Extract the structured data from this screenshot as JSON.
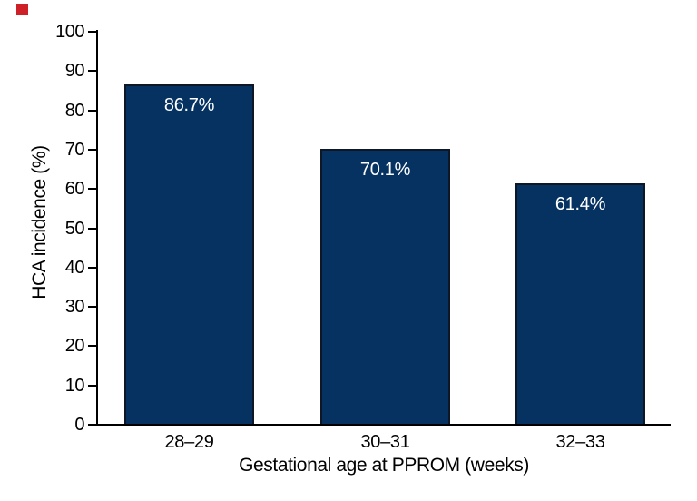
{
  "figure": {
    "marker_color": "#ce2127"
  },
  "chart_data": {
    "type": "bar",
    "title": "",
    "categories": [
      "28–29",
      "30–31",
      "32–33"
    ],
    "values": [
      86.7,
      70.1,
      61.4
    ],
    "bar_labels": [
      "86.7%",
      "70.1%",
      "61.4%"
    ],
    "xlabel": "Gestational age at PPROM (weeks)",
    "ylabel": "HCA incidence (%)",
    "ylim": [
      0,
      100
    ],
    "ytick_step": 10,
    "yticks": [
      0,
      10,
      20,
      30,
      40,
      50,
      60,
      70,
      80,
      90,
      100
    ],
    "grid": false,
    "legend": "none",
    "layout_hints": {
      "bar_label_position": "inside-top",
      "ticks": "y-axis-only, outside-left",
      "spines": "left-and-bottom-only"
    },
    "colors": {
      "bar_fill": "#053261",
      "bar_border": "#0e1726",
      "bar_label_text": "#ffffff",
      "axis": "#000000",
      "tick_text": "#000000",
      "background": "#ffffff"
    }
  }
}
